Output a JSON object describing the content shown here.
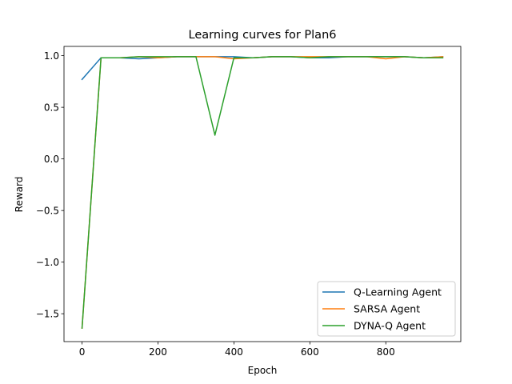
{
  "chart_data": {
    "type": "line",
    "title": "Learning curves for Plan6",
    "xlabel": "Epoch",
    "ylabel": "Reward",
    "xlim": [
      -47.5,
      997.5
    ],
    "ylim": [
      -1.77,
      1.09
    ],
    "x_ticks": [
      0,
      200,
      400,
      600,
      800
    ],
    "x_tick_labels": [
      "0",
      "200",
      "400",
      "600",
      "800"
    ],
    "y_ticks": [
      -1.5,
      -1.0,
      -0.5,
      0.0,
      0.5,
      1.0
    ],
    "y_tick_labels": [
      "−1.5",
      "−1.0",
      "−0.5",
      "0.0",
      "0.5",
      "1.0"
    ],
    "grid": false,
    "legend_position": "lower right",
    "x": [
      0,
      50,
      100,
      150,
      200,
      250,
      300,
      350,
      400,
      450,
      500,
      550,
      600,
      650,
      700,
      750,
      800,
      850,
      900,
      950
    ],
    "series": [
      {
        "name": "Q-Learning Agent",
        "color": "#1f77b4",
        "values": [
          0.77,
          0.98,
          0.98,
          0.97,
          0.98,
          0.99,
          0.99,
          0.99,
          0.99,
          0.98,
          0.99,
          0.99,
          0.98,
          0.98,
          0.99,
          0.99,
          0.99,
          0.99,
          0.98,
          0.99
        ]
      },
      {
        "name": "SARSA Agent",
        "color": "#ff7f0e",
        "values": [
          -1.64,
          0.98,
          0.98,
          0.99,
          0.98,
          0.99,
          0.99,
          0.99,
          0.97,
          0.98,
          0.99,
          0.99,
          0.99,
          0.99,
          0.99,
          0.99,
          0.97,
          0.99,
          0.98,
          0.99
        ]
      },
      {
        "name": "DYNA-Q Agent",
        "color": "#2ca02c",
        "values": [
          -1.64,
          0.98,
          0.98,
          0.99,
          0.99,
          0.99,
          0.99,
          0.23,
          0.98,
          0.98,
          0.99,
          0.99,
          0.98,
          0.99,
          0.99,
          0.99,
          0.99,
          0.99,
          0.98,
          0.98
        ]
      }
    ]
  }
}
